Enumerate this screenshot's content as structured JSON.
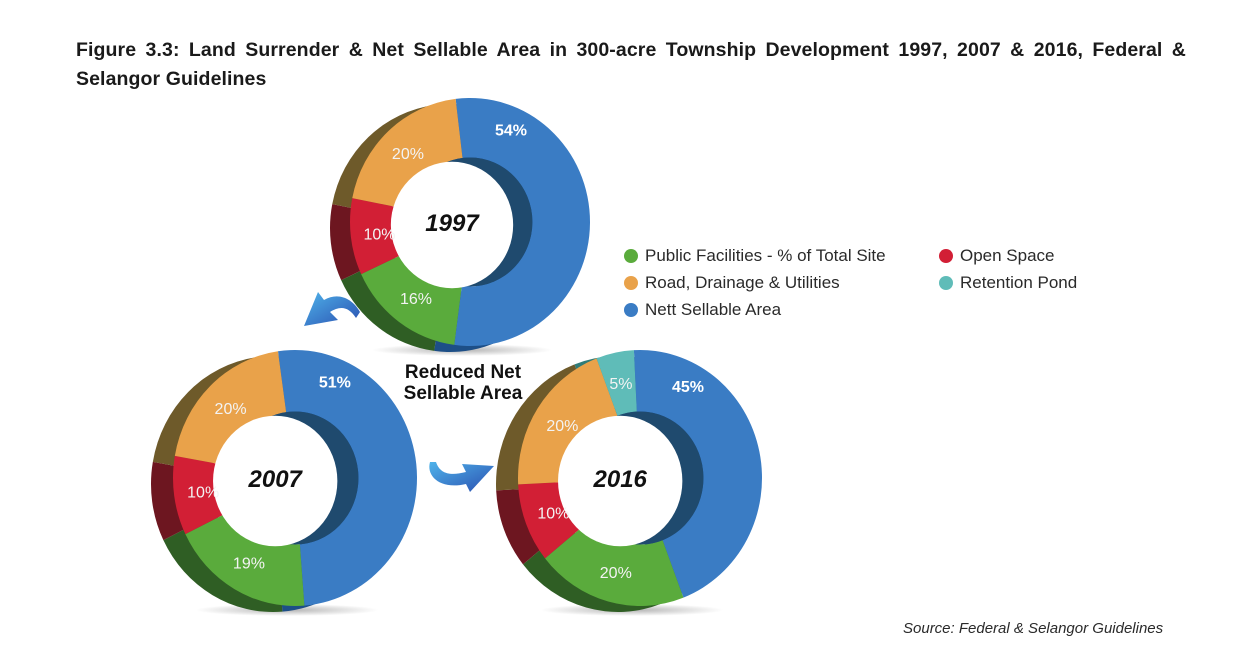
{
  "title": "Figure 3.3: Land Surrender & Net Sellable Area in 300-acre Township Development 1997, 2007 & 2016, Federal & Selangor Guidelines",
  "source": "Source: Federal & Selangor Guidelines",
  "center_note": [
    "Reduced Net",
    "Sellable Area"
  ],
  "legend": [
    {
      "label": "Public Facilities - % of Total Site",
      "color": "#5aab3c",
      "key": "public"
    },
    {
      "label": "Road, Drainage & Utilities",
      "color": "#e9a24a",
      "key": "road"
    },
    {
      "label": "Nett Sellable Area",
      "color": "#3a7cc4",
      "key": "nett"
    },
    {
      "label": "Open Space",
      "color": "#d21f35",
      "key": "open"
    },
    {
      "label": "Retention Pond",
      "color": "#5fbcb8",
      "key": "pond"
    }
  ],
  "chart_data": {
    "type": "pie",
    "variant": "donut-3d",
    "title": "Figure 3.3: Land Surrender & Net Sellable Area in 300-acre Township Development 1997, 2007 & 2016, Federal & Selangor Guidelines",
    "annotation": "Reduced Net Sellable Area",
    "legend_position": "right",
    "charts": [
      {
        "year": "1997",
        "slices": [
          {
            "category": "Nett Sellable Area",
            "value": 54,
            "label": "54%"
          },
          {
            "category": "Public Facilities - % of Total Site",
            "value": 16,
            "label": "16%"
          },
          {
            "category": "Open Space",
            "value": 10,
            "label": "10%"
          },
          {
            "category": "Road, Drainage & Utilities",
            "value": 20,
            "label": "20%"
          }
        ]
      },
      {
        "year": "2007",
        "slices": [
          {
            "category": "Nett Sellable Area",
            "value": 51,
            "label": "51%"
          },
          {
            "category": "Public Facilities - % of Total Site",
            "value": 19,
            "label": "19%"
          },
          {
            "category": "Open Space",
            "value": 10,
            "label": "10%"
          },
          {
            "category": "Road, Drainage & Utilities",
            "value": 20,
            "label": "20%"
          }
        ]
      },
      {
        "year": "2016",
        "slices": [
          {
            "category": "Nett Sellable Area",
            "value": 45,
            "label": "45%"
          },
          {
            "category": "Public Facilities - % of Total Site",
            "value": 20,
            "label": "20%"
          },
          {
            "category": "Open Space",
            "value": 10,
            "label": "10%"
          },
          {
            "category": "Road, Drainage & Utilities",
            "value": 20,
            "label": "20%"
          },
          {
            "category": "Retention Pond",
            "value": 5,
            "label": "5%"
          }
        ]
      }
    ]
  }
}
